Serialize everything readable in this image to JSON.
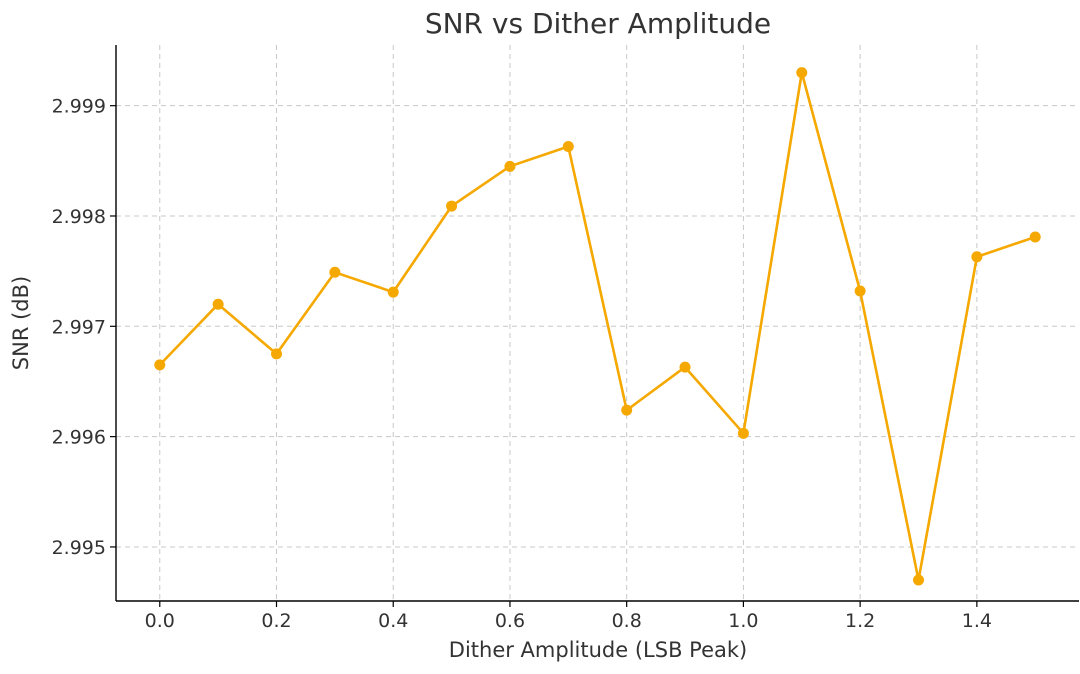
{
  "chart_data": {
    "type": "line",
    "title": "SNR vs Dither Amplitude",
    "xlabel": "Dither Amplitude (LSB Peak)",
    "ylabel": "SNR (dB)",
    "xlim": [
      -0.075,
      1.575
    ],
    "ylim": [
      2.99451,
      2.99955
    ],
    "x_ticks": [
      0.0,
      0.2,
      0.4,
      0.6,
      0.8,
      1.0,
      1.2,
      1.4
    ],
    "x_tick_labels": [
      "0.0",
      "0.2",
      "0.4",
      "0.6",
      "0.8",
      "1.0",
      "1.2",
      "1.4"
    ],
    "y_ticks": [
      2.995,
      2.996,
      2.997,
      2.998,
      2.999
    ],
    "y_tick_labels": [
      "2.995",
      "2.996",
      "2.997",
      "2.998",
      "2.999"
    ],
    "grid": true,
    "colors": {
      "series": "#f5a800",
      "grid": "#c8c8c8",
      "axis": "#000000",
      "text": "#333333"
    },
    "series": [
      {
        "x": [
          0.0,
          0.1,
          0.2,
          0.3,
          0.4,
          0.5,
          0.6,
          0.7,
          0.8,
          0.9,
          1.0,
          1.1,
          1.2,
          1.3,
          1.4,
          1.5
        ],
        "values": [
          2.99665,
          2.9972,
          2.99675,
          2.99749,
          2.99731,
          2.99809,
          2.99845,
          2.99863,
          2.99624,
          2.99663,
          2.99603,
          2.9993,
          2.99732,
          2.9947,
          2.99763,
          2.99781
        ]
      }
    ]
  }
}
